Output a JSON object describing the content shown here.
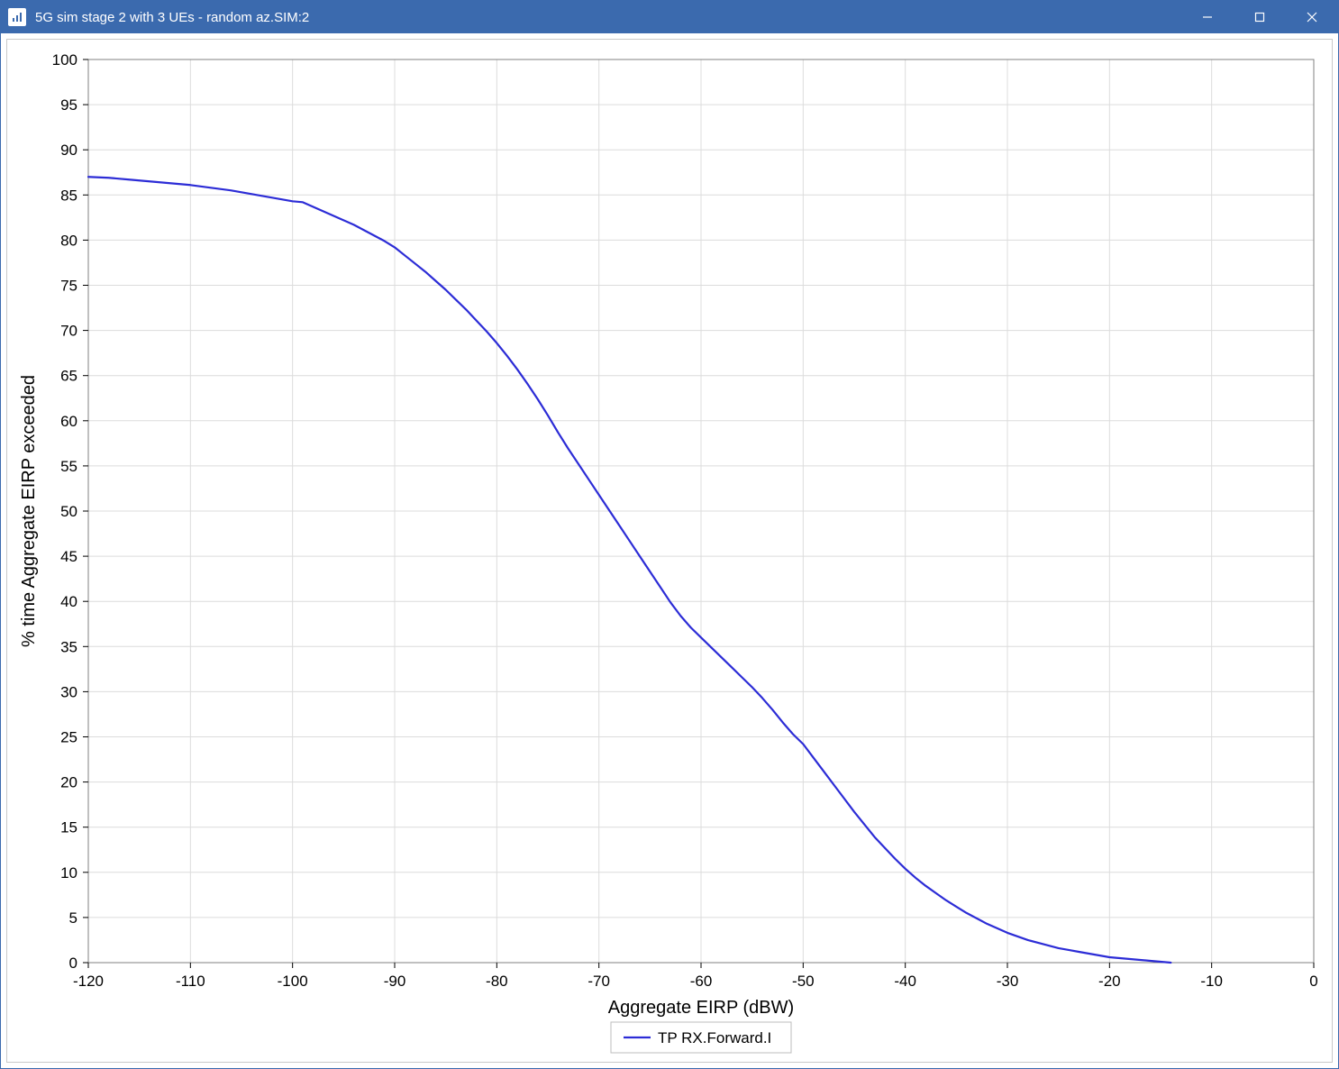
{
  "window": {
    "title": "5G sim stage 2 with 3 UEs - random az.SIM:2",
    "titlebar_bg": "#3b6aae",
    "titlebar_fg": "#ffffff"
  },
  "chart": {
    "type": "line",
    "background_color": "#ffffff",
    "plot_border_color": "#808080",
    "grid_color": "#dcdcdc",
    "frame_border_color": "#c9c9c9",
    "x": {
      "label": "Aggregate EIRP (dBW)",
      "min": -120,
      "max": 0,
      "tick_step": 10,
      "ticks": [
        -120,
        -110,
        -100,
        -90,
        -80,
        -70,
        -60,
        -50,
        -40,
        -30,
        -20,
        -10,
        0
      ]
    },
    "y": {
      "label": "% time Aggregate EIRP exceeded",
      "min": 0,
      "max": 100,
      "tick_step": 5,
      "ticks": [
        0,
        5,
        10,
        15,
        20,
        25,
        30,
        35,
        40,
        45,
        50,
        55,
        60,
        65,
        70,
        75,
        80,
        85,
        90,
        95,
        100
      ]
    },
    "series": [
      {
        "name": "TP RX.Forward.I",
        "color": "#2c2cd6",
        "line_width": 2.2,
        "data": [
          [
            -120,
            87.0
          ],
          [
            -118,
            86.9
          ],
          [
            -116,
            86.7
          ],
          [
            -114,
            86.5
          ],
          [
            -112,
            86.3
          ],
          [
            -110,
            86.1
          ],
          [
            -108,
            85.8
          ],
          [
            -106,
            85.5
          ],
          [
            -104,
            85.1
          ],
          [
            -102,
            84.7
          ],
          [
            -100,
            84.3
          ],
          [
            -99,
            84.2
          ],
          [
            -98,
            83.7
          ],
          [
            -97,
            83.2
          ],
          [
            -96,
            82.7
          ],
          [
            -95,
            82.2
          ],
          [
            -94,
            81.7
          ],
          [
            -93,
            81.1
          ],
          [
            -92,
            80.5
          ],
          [
            -91,
            79.9
          ],
          [
            -90,
            79.2
          ],
          [
            -89,
            78.3
          ],
          [
            -88,
            77.4
          ],
          [
            -87,
            76.5
          ],
          [
            -86,
            75.5
          ],
          [
            -85,
            74.5
          ],
          [
            -84,
            73.4
          ],
          [
            -83,
            72.3
          ],
          [
            -82,
            71.1
          ],
          [
            -81,
            69.9
          ],
          [
            -80,
            68.6
          ],
          [
            -79,
            67.2
          ],
          [
            -78,
            65.7
          ],
          [
            -77,
            64.1
          ],
          [
            -76,
            62.4
          ],
          [
            -75,
            60.6
          ],
          [
            -74,
            58.7
          ],
          [
            -73,
            56.9
          ],
          [
            -72,
            55.2
          ],
          [
            -71,
            53.5
          ],
          [
            -70,
            51.8
          ],
          [
            -69,
            50.1
          ],
          [
            -68,
            48.4
          ],
          [
            -67,
            46.7
          ],
          [
            -66,
            45.0
          ],
          [
            -65,
            43.3
          ],
          [
            -64,
            41.6
          ],
          [
            -63,
            39.9
          ],
          [
            -62,
            38.4
          ],
          [
            -61,
            37.1
          ],
          [
            -60,
            36.0
          ],
          [
            -59,
            34.9
          ],
          [
            -58,
            33.8
          ],
          [
            -57,
            32.7
          ],
          [
            -56,
            31.6
          ],
          [
            -55,
            30.5
          ],
          [
            -54,
            29.3
          ],
          [
            -53,
            28.0
          ],
          [
            -52,
            26.6
          ],
          [
            -51,
            25.3
          ],
          [
            -50,
            24.2
          ],
          [
            -49,
            22.7
          ],
          [
            -48,
            21.2
          ],
          [
            -47,
            19.7
          ],
          [
            -46,
            18.2
          ],
          [
            -45,
            16.7
          ],
          [
            -44,
            15.3
          ],
          [
            -43,
            13.9
          ],
          [
            -42,
            12.7
          ],
          [
            -41,
            11.5
          ],
          [
            -40,
            10.4
          ],
          [
            -39,
            9.4
          ],
          [
            -38,
            8.5
          ],
          [
            -37,
            7.7
          ],
          [
            -36,
            6.9
          ],
          [
            -35,
            6.2
          ],
          [
            -34,
            5.5
          ],
          [
            -33,
            4.9
          ],
          [
            -32,
            4.3
          ],
          [
            -31,
            3.8
          ],
          [
            -30,
            3.3
          ],
          [
            -29,
            2.9
          ],
          [
            -28,
            2.5
          ],
          [
            -27,
            2.2
          ],
          [
            -26,
            1.9
          ],
          [
            -25,
            1.6
          ],
          [
            -24,
            1.4
          ],
          [
            -23,
            1.2
          ],
          [
            -22,
            1.0
          ],
          [
            -21,
            0.8
          ],
          [
            -20,
            0.6
          ],
          [
            -19,
            0.5
          ],
          [
            -18,
            0.4
          ],
          [
            -17,
            0.3
          ],
          [
            -16,
            0.2
          ],
          [
            -15,
            0.1
          ],
          [
            -14,
            0.0
          ]
        ]
      }
    ],
    "legend": {
      "position": "bottom-center",
      "border_color": "#bcbcbc",
      "bg_color": "#ffffff",
      "font_size": 17
    },
    "axis_label_fontsize": 20,
    "tick_fontsize": 17
  }
}
